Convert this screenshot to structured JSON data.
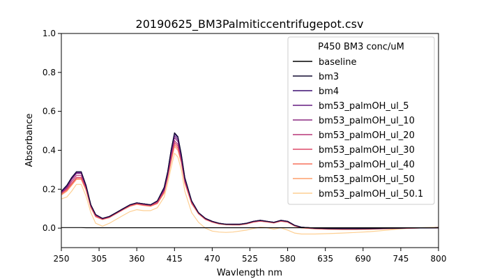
{
  "chart_data": {
    "type": "line",
    "title": "20190625_BM3Palmiticcentrifugepot.csv",
    "xlabel": "Wavlength nm",
    "ylabel": "Absorbance",
    "xlim": [
      250,
      800
    ],
    "ylim": [
      -0.1,
      1.0
    ],
    "xticks": [
      250,
      305,
      360,
      415,
      470,
      525,
      580,
      635,
      690,
      745,
      800
    ],
    "yticks": [
      0.0,
      0.2,
      0.4,
      0.6,
      0.8,
      1.0
    ],
    "grid": false,
    "legend": {
      "title": "P450 BM3 conc/uM",
      "placement": "upper-right"
    },
    "x": [
      250,
      258,
      265,
      272,
      279,
      286,
      293,
      300,
      310,
      320,
      330,
      340,
      350,
      360,
      370,
      380,
      390,
      400,
      405,
      410,
      415,
      420,
      425,
      430,
      440,
      450,
      460,
      470,
      480,
      490,
      500,
      510,
      520,
      530,
      540,
      550,
      560,
      570,
      580,
      590,
      600,
      620,
      640,
      660,
      680,
      700,
      720,
      740,
      760,
      780,
      800
    ],
    "series": [
      {
        "name": "baseline",
        "color": "#000000",
        "values": [
          0.003,
          0.003,
          0.003,
          0.003,
          0.003,
          0.002,
          0.002,
          0.002,
          0.002,
          0.002,
          0.002,
          0.002,
          0.002,
          0.002,
          0.002,
          0.002,
          0.002,
          0.002,
          0.002,
          0.002,
          0.002,
          0.002,
          0.002,
          0.002,
          0.002,
          0.002,
          0.002,
          0.002,
          0.002,
          0.002,
          0.002,
          0.002,
          0.002,
          0.002,
          0.002,
          0.002,
          0.002,
          0.002,
          0.002,
          0.002,
          0.002,
          0.002,
          0.002,
          0.002,
          0.002,
          0.002,
          0.002,
          0.002,
          0.002,
          0.002,
          0.002
        ]
      },
      {
        "name": "bm3",
        "color": "#110a30",
        "values": [
          0.19,
          0.22,
          0.26,
          0.29,
          0.29,
          0.22,
          0.12,
          0.07,
          0.05,
          0.06,
          0.08,
          0.1,
          0.12,
          0.13,
          0.125,
          0.12,
          0.14,
          0.21,
          0.29,
          0.4,
          0.49,
          0.47,
          0.38,
          0.26,
          0.14,
          0.08,
          0.05,
          0.035,
          0.025,
          0.02,
          0.02,
          0.02,
          0.025,
          0.035,
          0.04,
          0.035,
          0.03,
          0.04,
          0.035,
          0.015,
          0.005,
          0.0,
          -0.002,
          -0.003,
          -0.003,
          -0.002,
          -0.001,
          0.0,
          0.001,
          0.001,
          0.002
        ]
      },
      {
        "name": "bm4",
        "color": "#3b0f70",
        "values": [
          0.19,
          0.22,
          0.26,
          0.29,
          0.29,
          0.22,
          0.12,
          0.07,
          0.05,
          0.06,
          0.08,
          0.1,
          0.12,
          0.13,
          0.125,
          0.12,
          0.14,
          0.21,
          0.29,
          0.4,
          0.485,
          0.465,
          0.375,
          0.26,
          0.14,
          0.08,
          0.05,
          0.035,
          0.025,
          0.02,
          0.02,
          0.02,
          0.025,
          0.035,
          0.04,
          0.035,
          0.03,
          0.04,
          0.035,
          0.015,
          0.005,
          0.0,
          -0.002,
          -0.003,
          -0.003,
          -0.002,
          -0.001,
          0.0,
          0.001,
          0.001,
          0.002
        ]
      },
      {
        "name": "bm53_palmOH_ul_5",
        "color": "#641a80",
        "values": [
          0.185,
          0.215,
          0.255,
          0.285,
          0.285,
          0.215,
          0.12,
          0.07,
          0.05,
          0.06,
          0.08,
          0.1,
          0.12,
          0.13,
          0.125,
          0.12,
          0.14,
          0.2,
          0.28,
          0.39,
          0.475,
          0.455,
          0.37,
          0.255,
          0.14,
          0.08,
          0.05,
          0.035,
          0.025,
          0.02,
          0.02,
          0.02,
          0.025,
          0.035,
          0.04,
          0.035,
          0.03,
          0.04,
          0.035,
          0.015,
          0.005,
          0.0,
          -0.002,
          -0.003,
          -0.003,
          -0.002,
          -0.001,
          0.0,
          0.001,
          0.001,
          0.002
        ]
      },
      {
        "name": "bm53_palmOH_ul_10",
        "color": "#8c2981",
        "values": [
          0.185,
          0.21,
          0.25,
          0.28,
          0.28,
          0.215,
          0.12,
          0.07,
          0.05,
          0.06,
          0.08,
          0.1,
          0.12,
          0.13,
          0.125,
          0.12,
          0.14,
          0.2,
          0.28,
          0.38,
          0.465,
          0.445,
          0.36,
          0.25,
          0.14,
          0.08,
          0.05,
          0.035,
          0.025,
          0.02,
          0.02,
          0.02,
          0.025,
          0.035,
          0.04,
          0.035,
          0.03,
          0.04,
          0.035,
          0.015,
          0.005,
          0.0,
          -0.002,
          -0.003,
          -0.003,
          -0.002,
          -0.001,
          0.0,
          0.001,
          0.001,
          0.002
        ]
      },
      {
        "name": "bm53_palmOH_ul_20",
        "color": "#b73779",
        "values": [
          0.18,
          0.205,
          0.24,
          0.27,
          0.27,
          0.21,
          0.115,
          0.065,
          0.048,
          0.058,
          0.078,
          0.098,
          0.118,
          0.128,
          0.122,
          0.118,
          0.135,
          0.195,
          0.27,
          0.37,
          0.45,
          0.43,
          0.35,
          0.245,
          0.135,
          0.078,
          0.048,
          0.033,
          0.024,
          0.02,
          0.019,
          0.019,
          0.024,
          0.033,
          0.038,
          0.034,
          0.029,
          0.038,
          0.033,
          0.014,
          0.004,
          -0.001,
          -0.003,
          -0.004,
          -0.004,
          -0.003,
          -0.002,
          0.0,
          0.001,
          0.001,
          0.002
        ]
      },
      {
        "name": "bm53_palmOH_ul_30",
        "color": "#de4968",
        "values": [
          0.18,
          0.2,
          0.23,
          0.26,
          0.26,
          0.205,
          0.11,
          0.062,
          0.046,
          0.056,
          0.076,
          0.096,
          0.116,
          0.126,
          0.12,
          0.116,
          0.13,
          0.19,
          0.265,
          0.36,
          0.44,
          0.42,
          0.345,
          0.24,
          0.13,
          0.076,
          0.046,
          0.032,
          0.023,
          0.019,
          0.018,
          0.018,
          0.023,
          0.032,
          0.037,
          0.033,
          0.028,
          0.037,
          0.032,
          0.013,
          0.003,
          -0.002,
          -0.004,
          -0.005,
          -0.005,
          -0.004,
          -0.002,
          -0.001,
          0.0,
          0.001,
          0.002
        ]
      },
      {
        "name": "bm53_palmOH_ul_40",
        "color": "#f7705c",
        "values": [
          0.175,
          0.195,
          0.225,
          0.255,
          0.255,
          0.2,
          0.108,
          0.06,
          0.045,
          0.055,
          0.075,
          0.095,
          0.114,
          0.124,
          0.118,
          0.114,
          0.128,
          0.185,
          0.26,
          0.35,
          0.43,
          0.41,
          0.34,
          0.235,
          0.128,
          0.075,
          0.045,
          0.031,
          0.022,
          0.018,
          0.017,
          0.017,
          0.022,
          0.031,
          0.036,
          0.032,
          0.027,
          0.036,
          0.031,
          0.012,
          0.002,
          -0.003,
          -0.005,
          -0.006,
          -0.006,
          -0.005,
          -0.003,
          -0.001,
          0.0,
          0.001,
          0.002
        ]
      },
      {
        "name": "bm53_palmOH_ul_50",
        "color": "#fe9f6d",
        "values": [
          0.17,
          0.19,
          0.22,
          0.25,
          0.25,
          0.195,
          0.105,
          0.058,
          0.044,
          0.054,
          0.074,
          0.094,
          0.112,
          0.122,
          0.116,
          0.112,
          0.126,
          0.18,
          0.255,
          0.34,
          0.42,
          0.4,
          0.335,
          0.23,
          0.125,
          0.073,
          0.044,
          0.03,
          0.021,
          0.017,
          0.016,
          0.016,
          0.021,
          0.03,
          0.035,
          0.031,
          0.026,
          0.035,
          0.03,
          0.011,
          0.001,
          -0.004,
          -0.006,
          -0.007,
          -0.007,
          -0.006,
          -0.004,
          -0.002,
          0.0,
          0.001,
          0.002
        ]
      },
      {
        "name": "bm53_palmOH_ul_50.1",
        "color": "#fecf92",
        "values": [
          0.15,
          0.16,
          0.19,
          0.225,
          0.225,
          0.165,
          0.08,
          0.025,
          0.01,
          0.025,
          0.045,
          0.065,
          0.085,
          0.095,
          0.09,
          0.09,
          0.105,
          0.16,
          0.23,
          0.31,
          0.385,
          0.365,
          0.3,
          0.19,
          0.08,
          0.03,
          0.0,
          -0.015,
          -0.02,
          -0.022,
          -0.02,
          -0.015,
          -0.01,
          -0.002,
          0.005,
          0.002,
          -0.005,
          0.002,
          -0.01,
          -0.025,
          -0.03,
          -0.03,
          -0.028,
          -0.025,
          -0.022,
          -0.018,
          -0.012,
          -0.005,
          0.0,
          0.003,
          0.005
        ]
      }
    ]
  }
}
